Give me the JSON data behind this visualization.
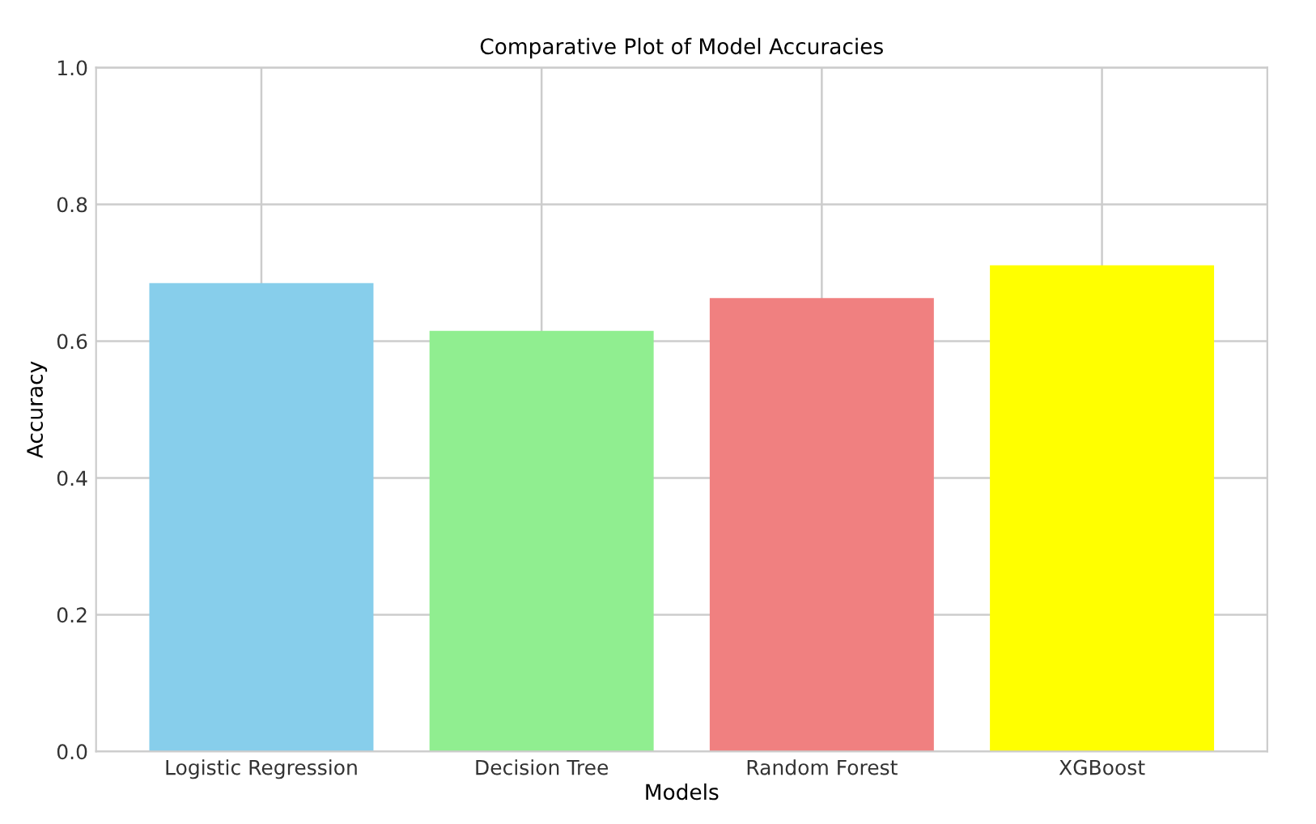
{
  "chart_data": {
    "type": "bar",
    "title": "Comparative Plot of Model Accuracies",
    "xlabel": "Models",
    "ylabel": "Accuracy",
    "categories": [
      "Logistic Regression",
      "Decision Tree",
      "Random Forest",
      "XGBoost"
    ],
    "values": [
      0.685,
      0.615,
      0.663,
      0.711
    ],
    "colors": [
      "#87ceeb",
      "#90ee90",
      "#f08080",
      "#ffff00"
    ],
    "ylim": [
      0,
      1
    ],
    "yticks": [
      {
        "value": 0,
        "label": "0.0"
      },
      0.2,
      0.4,
      0.6,
      0.8,
      {
        "value": 1,
        "label": "1.0"
      }
    ],
    "grid": true
  }
}
